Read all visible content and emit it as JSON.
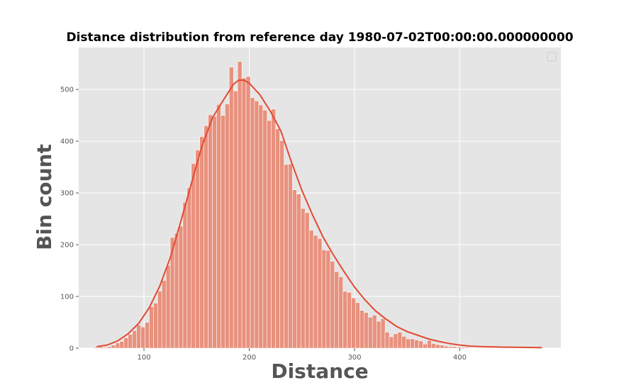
{
  "chart_data": {
    "type": "bar",
    "title": "Distance distribution from reference day 1980-07-02T00:00:00.000000000",
    "xlabel": "Distance",
    "ylabel": "Bin count",
    "xlim": [
      38,
      496
    ],
    "ylim": [
      0,
      581
    ],
    "x_ticks": [
      100,
      200,
      300,
      400
    ],
    "y_ticks": [
      0,
      100,
      200,
      300,
      400,
      500
    ],
    "grid": true,
    "legend": "top-right (empty)",
    "colors": {
      "plot_background": "#e5e5e5",
      "grid": "#ffffff",
      "bars": "#e8917e",
      "kde_line": "#e24a33",
      "axis_text": "#555555"
    },
    "bin_width": 4.1,
    "bins": [
      [
        55,
        2
      ],
      [
        59,
        3
      ],
      [
        63,
        2
      ],
      [
        67,
        3
      ],
      [
        71,
        6
      ],
      [
        75,
        10
      ],
      [
        79,
        13
      ],
      [
        83,
        20
      ],
      [
        87,
        27
      ],
      [
        91,
        34
      ],
      [
        95,
        45
      ],
      [
        99,
        41
      ],
      [
        103,
        50
      ],
      [
        107,
        80
      ],
      [
        111,
        87
      ],
      [
        115,
        110
      ],
      [
        119,
        131
      ],
      [
        123,
        160
      ],
      [
        127,
        214
      ],
      [
        131,
        222
      ],
      [
        135,
        236
      ],
      [
        139,
        282
      ],
      [
        143,
        310
      ],
      [
        147,
        357
      ],
      [
        151,
        383
      ],
      [
        155,
        409
      ],
      [
        159,
        430
      ],
      [
        163,
        451
      ],
      [
        167,
        448
      ],
      [
        171,
        471
      ],
      [
        175,
        450
      ],
      [
        179,
        472
      ],
      [
        183,
        543
      ],
      [
        187,
        497
      ],
      [
        191,
        554
      ],
      [
        195,
        522
      ],
      [
        199,
        525
      ],
      [
        203,
        484
      ],
      [
        207,
        478
      ],
      [
        211,
        470
      ],
      [
        215,
        460
      ],
      [
        219,
        440
      ],
      [
        223,
        462
      ],
      [
        227,
        424
      ],
      [
        231,
        401
      ],
      [
        235,
        355
      ],
      [
        239,
        356
      ],
      [
        243,
        306
      ],
      [
        247,
        298
      ],
      [
        251,
        270
      ],
      [
        255,
        262
      ],
      [
        259,
        228
      ],
      [
        263,
        218
      ],
      [
        267,
        212
      ],
      [
        271,
        190
      ],
      [
        275,
        189
      ],
      [
        279,
        168
      ],
      [
        283,
        148
      ],
      [
        287,
        138
      ],
      [
        291,
        110
      ],
      [
        295,
        108
      ],
      [
        299,
        97
      ],
      [
        303,
        88
      ],
      [
        307,
        73
      ],
      [
        311,
        69
      ],
      [
        315,
        60
      ],
      [
        319,
        64
      ],
      [
        323,
        52
      ],
      [
        327,
        57
      ],
      [
        331,
        31
      ],
      [
        335,
        22
      ],
      [
        339,
        28
      ],
      [
        343,
        31
      ],
      [
        347,
        23
      ],
      [
        351,
        18
      ],
      [
        355,
        18
      ],
      [
        359,
        16
      ],
      [
        363,
        14
      ],
      [
        367,
        8
      ],
      [
        371,
        15
      ],
      [
        375,
        9
      ],
      [
        379,
        7
      ],
      [
        383,
        6
      ],
      [
        387,
        4
      ],
      [
        391,
        3
      ],
      [
        395,
        3
      ],
      [
        399,
        2
      ],
      [
        403,
        2
      ],
      [
        407,
        2
      ],
      [
        411,
        1
      ],
      [
        415,
        1
      ],
      [
        419,
        1
      ],
      [
        423,
        1
      ],
      [
        427,
        1
      ],
      [
        431,
        1
      ],
      [
        435,
        1
      ],
      [
        439,
        1
      ],
      [
        443,
        1
      ],
      [
        447,
        1
      ],
      [
        451,
        1
      ],
      [
        455,
        1
      ],
      [
        459,
        1
      ],
      [
        463,
        1
      ],
      [
        467,
        1
      ],
      [
        471,
        1
      ]
    ],
    "kde": [
      [
        55,
        3
      ],
      [
        65,
        6
      ],
      [
        75,
        14
      ],
      [
        85,
        28
      ],
      [
        95,
        48
      ],
      [
        105,
        78
      ],
      [
        115,
        120
      ],
      [
        125,
        175
      ],
      [
        135,
        245
      ],
      [
        145,
        318
      ],
      [
        155,
        390
      ],
      [
        165,
        445
      ],
      [
        175,
        478
      ],
      [
        185,
        510
      ],
      [
        190,
        518
      ],
      [
        195,
        518
      ],
      [
        200,
        512
      ],
      [
        210,
        490
      ],
      [
        220,
        458
      ],
      [
        230,
        420
      ],
      [
        240,
        360
      ],
      [
        250,
        305
      ],
      [
        260,
        258
      ],
      [
        270,
        215
      ],
      [
        280,
        180
      ],
      [
        290,
        148
      ],
      [
        300,
        118
      ],
      [
        310,
        93
      ],
      [
        320,
        72
      ],
      [
        330,
        56
      ],
      [
        340,
        42
      ],
      [
        350,
        32
      ],
      [
        360,
        25
      ],
      [
        370,
        18
      ],
      [
        380,
        13
      ],
      [
        390,
        9
      ],
      [
        400,
        6
      ],
      [
        410,
        4
      ],
      [
        420,
        3
      ],
      [
        440,
        2
      ],
      [
        460,
        1.5
      ],
      [
        478,
        1
      ]
    ]
  }
}
